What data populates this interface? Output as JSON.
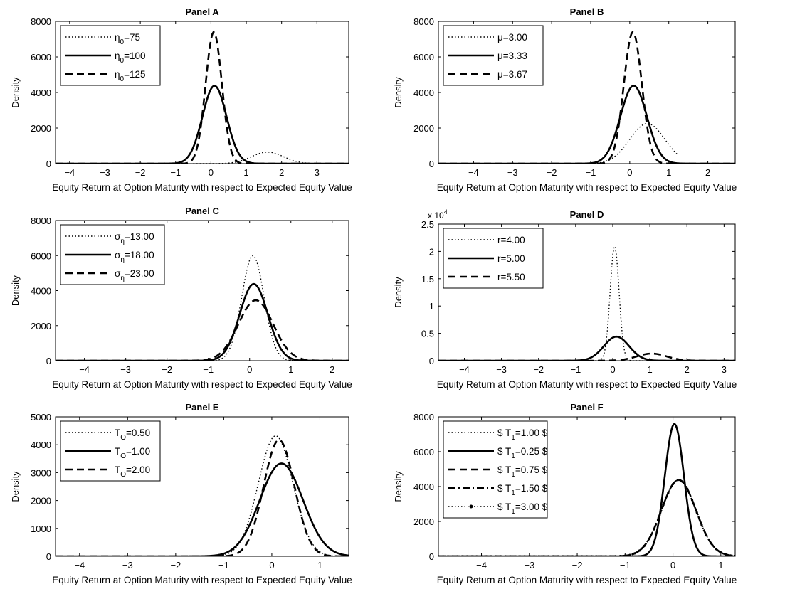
{
  "figure": {
    "ylabel": "Density",
    "xlabel": "Equity Return at Option Maturity with respect to Expected Equity Value"
  },
  "chart_data": [
    {
      "type": "line",
      "title": "Panel A",
      "xlabel": "Equity Return at Option Maturity with respect to Expected Equity Value",
      "ylabel": "Density",
      "xlim": [
        -4.4,
        3.9
      ],
      "ylim": [
        0,
        8000
      ],
      "xticks": [
        -4,
        -3,
        -2,
        -1,
        0,
        1,
        2,
        3
      ],
      "yticks": [
        0,
        2000,
        4000,
        6000,
        8000
      ],
      "legend_position": "top-left",
      "series": [
        {
          "name": "η0=75",
          "sub": "0",
          "style": "dotted",
          "components": [
            {
              "mu": 1.6,
              "sd": 0.45,
              "peak": 650
            }
          ],
          "x": [
            -0.5,
            3.5
          ]
        },
        {
          "name": "η0=100",
          "sub": "0",
          "style": "solid",
          "components": [
            {
              "mu": 0.1,
              "sd": 0.34,
              "peak": 4380
            }
          ],
          "x": [
            -4.4,
            3.9
          ]
        },
        {
          "name": "η0=125",
          "sub": "0",
          "style": "dashed",
          "components": [
            {
              "mu": 0.08,
              "sd": 0.23,
              "peak": 7400
            }
          ],
          "x": [
            -4.4,
            3.9
          ]
        }
      ]
    },
    {
      "type": "line",
      "title": "Panel B",
      "xlabel": "Equity Return at Option Maturity with respect to Expected Equity Value",
      "ylabel": "Density",
      "xlim": [
        -4.9,
        2.7
      ],
      "ylim": [
        0,
        8000
      ],
      "xticks": [
        -4,
        -3,
        -2,
        -1,
        0,
        1,
        2
      ],
      "yticks": [
        0,
        2000,
        4000,
        6000,
        8000
      ],
      "legend_position": "top-left",
      "series": [
        {
          "name": "μ=3.00",
          "style": "dotted",
          "components": [
            {
              "mu": 0.45,
              "sd": 0.45,
              "peak": 2250
            }
          ],
          "x": [
            -1.5,
            1.25
          ]
        },
        {
          "name": "μ=3.33",
          "style": "solid",
          "components": [
            {
              "mu": 0.1,
              "sd": 0.34,
              "peak": 4380
            }
          ],
          "x": [
            -4.9,
            2.7
          ]
        },
        {
          "name": "μ=3.67",
          "style": "dashed",
          "components": [
            {
              "mu": 0.08,
              "sd": 0.23,
              "peak": 7400
            }
          ],
          "x": [
            -4.9,
            2.7
          ]
        }
      ]
    },
    {
      "type": "line",
      "title": "Panel C",
      "xlabel": "Equity Return at Option Maturity with respect to Expected Equity Value",
      "ylabel": "Density",
      "xlim": [
        -4.7,
        2.4
      ],
      "ylim": [
        0,
        8000
      ],
      "xticks": [
        -4,
        -3,
        -2,
        -1,
        0,
        1,
        2
      ],
      "yticks": [
        0,
        2000,
        4000,
        6000,
        8000
      ],
      "legend_position": "top-left",
      "series": [
        {
          "name": "ση=13.00",
          "sub": "η",
          "style": "dotted",
          "components": [
            {
              "mu": 0.08,
              "sd": 0.27,
              "peak": 6000
            }
          ],
          "x": [
            -4.7,
            2.4
          ]
        },
        {
          "name": "ση=18.00",
          "sub": "η",
          "style": "solid",
          "components": [
            {
              "mu": 0.1,
              "sd": 0.34,
              "peak": 4380
            }
          ],
          "x": [
            -4.7,
            2.4
          ]
        },
        {
          "name": "ση=23.00",
          "sub": "η",
          "style": "dashed",
          "components": [
            {
              "mu": 0.15,
              "sd": 0.42,
              "peak": 3450
            }
          ],
          "x": [
            -4.7,
            2.4
          ]
        }
      ]
    },
    {
      "type": "line",
      "title": "Panel D",
      "xlabel": "Equity Return at Option Maturity with respect to Expected Equity Value",
      "ylabel": "Density",
      "y_multiplier": "x 10^4",
      "xlim": [
        -4.7,
        3.3
      ],
      "ylim": [
        0,
        2.5
      ],
      "xticks": [
        -4,
        -3,
        -2,
        -1,
        0,
        1,
        2,
        3
      ],
      "yticks": [
        0,
        0.5,
        1,
        1.5,
        2,
        2.5
      ],
      "legend_position": "top-left",
      "series": [
        {
          "name": "r=4.00",
          "style": "dotted",
          "components": [
            {
              "mu": 0.05,
              "sd": 0.12,
              "peak": 2.1
            }
          ],
          "x": [
            -4.7,
            3.3
          ]
        },
        {
          "name": "r=5.00",
          "style": "solid",
          "components": [
            {
              "mu": 0.1,
              "sd": 0.34,
              "peak": 0.44
            }
          ],
          "x": [
            -4.7,
            3.3
          ]
        },
        {
          "name": "r=5.50",
          "style": "dashed",
          "components": [
            {
              "mu": 1.05,
              "sd": 0.4,
              "peak": 0.13
            }
          ],
          "x": [
            -4.7,
            3.3
          ]
        }
      ]
    },
    {
      "type": "line",
      "title": "Panel E",
      "xlabel": "Equity Return at Option Maturity with respect to Expected Equity Value",
      "ylabel": "Density",
      "xlim": [
        -4.5,
        1.6
      ],
      "ylim": [
        0,
        5000
      ],
      "xticks": [
        -4,
        -3,
        -2,
        -1,
        0,
        1
      ],
      "yticks": [
        0,
        1000,
        2000,
        3000,
        4000,
        5000
      ],
      "legend_position": "top-left",
      "series": [
        {
          "name": "TO=0.50",
          "sub": "O",
          "style": "dotted",
          "components": [
            {
              "mu": 0.08,
              "sd": 0.36,
              "peak": 4320
            }
          ],
          "x": [
            -4.5,
            1.6
          ]
        },
        {
          "name": "TO=1.00",
          "sub": "O",
          "style": "solid",
          "components": [
            {
              "mu": 0.2,
              "sd": 0.45,
              "peak": 3330
            }
          ],
          "x": [
            -4.5,
            1.6
          ]
        },
        {
          "name": "TO=2.00",
          "sub": "O",
          "style": "dashed",
          "components": [
            {
              "mu": 0.15,
              "sd": 0.32,
              "peak": 4170
            }
          ],
          "x": [
            -4.5,
            1.6
          ]
        }
      ]
    },
    {
      "type": "line",
      "title": "Panel F",
      "xlabel": "Equity Return at Option Maturity with respect to Expected Equity Value",
      "ylabel": "Density",
      "xlim": [
        -4.9,
        1.3
      ],
      "ylim": [
        0,
        8000
      ],
      "xticks": [
        -4,
        -3,
        -2,
        -1,
        0,
        1
      ],
      "yticks": [
        0,
        2000,
        4000,
        6000,
        8000
      ],
      "legend_position": "top-left",
      "series": [
        {
          "name": "$ T1=1.00 $",
          "sub": "1",
          "style": "dotted",
          "components": [
            {
              "mu": 0.12,
              "sd": 0.36,
              "peak": 4380
            }
          ],
          "x": [
            -4.9,
            1.3
          ]
        },
        {
          "name": "$ T1=0.25 $",
          "sub": "1",
          "style": "solid",
          "components": [
            {
              "mu": 0.03,
              "sd": 0.2,
              "peak": 7600
            }
          ],
          "x": [
            -4.9,
            1.3
          ]
        },
        {
          "name": "$ T1=0.75 $",
          "sub": "1",
          "style": "dashed",
          "components": [
            {
              "mu": 0.12,
              "sd": 0.36,
              "peak": 4380
            }
          ],
          "x": [
            -4.9,
            1.3
          ]
        },
        {
          "name": "$ T1=1.50 $",
          "sub": "1",
          "style": "dashdot",
          "components": [
            {
              "mu": 0.12,
              "sd": 0.36,
              "peak": 4380
            }
          ],
          "x": [
            -4.9,
            1.3
          ]
        },
        {
          "name": "$ T1=3.00 $",
          "sub": "1",
          "style": "dotmarker",
          "components": [
            {
              "mu": 0.12,
              "sd": 0.36,
              "peak": 4380
            }
          ],
          "x": [
            -4.9,
            1.3
          ]
        }
      ]
    }
  ]
}
